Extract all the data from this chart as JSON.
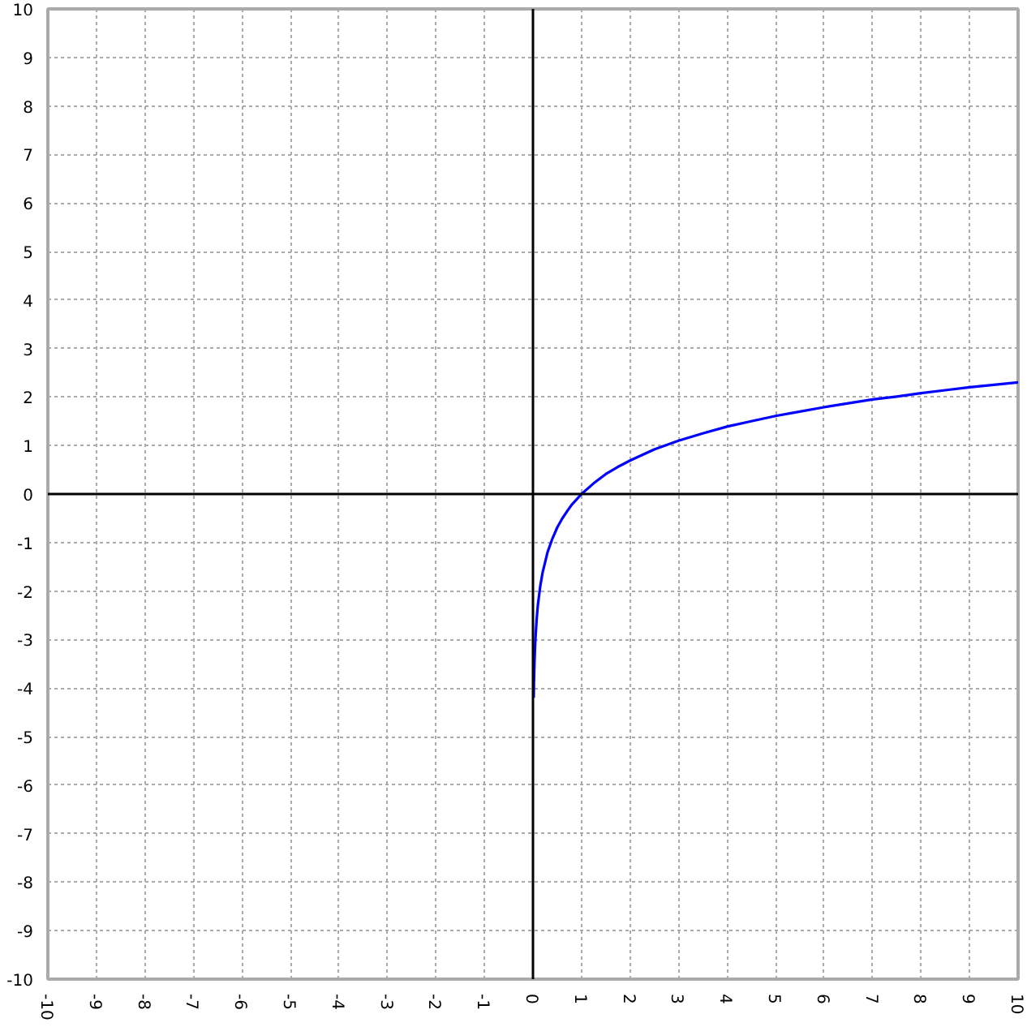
{
  "chart_data": {
    "type": "line",
    "x": [
      0.015,
      0.02,
      0.03,
      0.04,
      0.05,
      0.075,
      0.1,
      0.15,
      0.2,
      0.3,
      0.4,
      0.5,
      0.6,
      0.7,
      0.8,
      0.9,
      1,
      1.25,
      1.5,
      1.75,
      2,
      2.5,
      3,
      3.5,
      4,
      4.5,
      5,
      5.5,
      6,
      6.5,
      7,
      7.5,
      8,
      8.5,
      9,
      9.5,
      10
    ],
    "values": [
      -4.2,
      -3.91,
      -3.51,
      -3.22,
      -3.0,
      -2.59,
      -2.3,
      -1.9,
      -1.61,
      -1.2,
      -0.92,
      -0.69,
      -0.51,
      -0.36,
      -0.22,
      -0.11,
      0,
      0.22,
      0.41,
      0.56,
      0.69,
      0.92,
      1.1,
      1.25,
      1.39,
      1.5,
      1.61,
      1.7,
      1.79,
      1.87,
      1.95,
      2.01,
      2.08,
      2.14,
      2.2,
      2.25,
      2.3
    ],
    "color": "#0000ff",
    "line_style": "solid",
    "xlim": [
      -10,
      10
    ],
    "ylim": [
      -10,
      10
    ],
    "xticks": [
      -10,
      -9,
      -8,
      -7,
      -6,
      -5,
      -4,
      -3,
      -2,
      -1,
      0,
      1,
      2,
      3,
      4,
      5,
      6,
      7,
      8,
      9,
      10
    ],
    "yticks": [
      -10,
      -9,
      -8,
      -7,
      -6,
      -5,
      -4,
      -3,
      -2,
      -1,
      0,
      1,
      2,
      3,
      4,
      5,
      6,
      7,
      8,
      9,
      10
    ],
    "grid": true
  }
}
